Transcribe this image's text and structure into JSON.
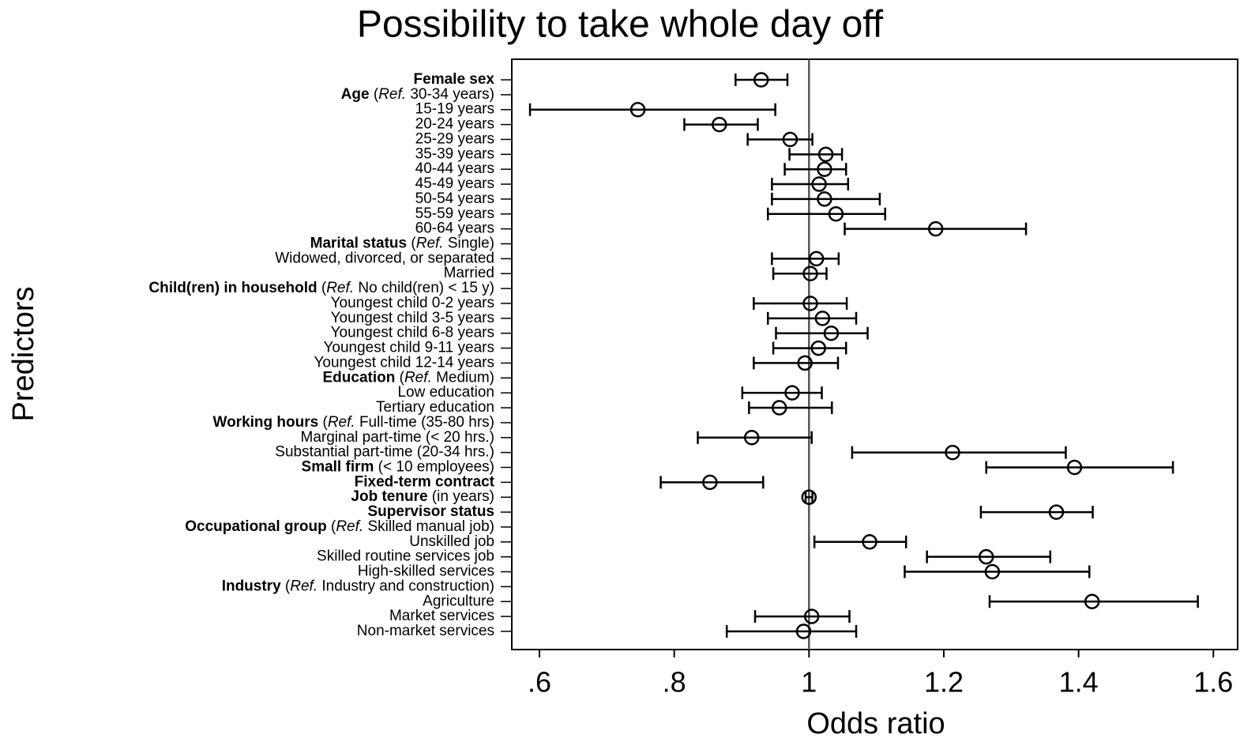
{
  "chart_data": {
    "type": "forest",
    "title": "Possibility to take whole day off",
    "x_label": "Odds ratio",
    "y_label": "Predictors",
    "categories": [
      [
        {
          "text": "Female sex",
          "bold": true
        }
      ],
      [
        {
          "text": "Age",
          "bold": true
        },
        {
          "text": " ("
        },
        {
          "text": "Ref.",
          "italic": true
        },
        {
          "text": " 30-34 years)"
        }
      ],
      [
        {
          "text": "15-19 years"
        }
      ],
      [
        {
          "text": "20-24 years"
        }
      ],
      [
        {
          "text": "25-29 years"
        }
      ],
      [
        {
          "text": "35-39 years"
        }
      ],
      [
        {
          "text": "40-44 years"
        }
      ],
      [
        {
          "text": "45-49 years"
        }
      ],
      [
        {
          "text": "50-54 years"
        }
      ],
      [
        {
          "text": "55-59 years"
        }
      ],
      [
        {
          "text": "60-64 years"
        }
      ],
      [
        {
          "text": "Marital status",
          "bold": true
        },
        {
          "text": " ("
        },
        {
          "text": "Ref.",
          "italic": true
        },
        {
          "text": " Single)"
        }
      ],
      [
        {
          "text": "Widowed, divorced, or separated"
        }
      ],
      [
        {
          "text": "Married"
        }
      ],
      [
        {
          "text": "Child(ren) in household",
          "bold": true
        },
        {
          "text": " ("
        },
        {
          "text": "Ref.",
          "italic": true
        },
        {
          "text": " No child(ren) < 15 y)"
        }
      ],
      [
        {
          "text": "Youngest child 0-2 years"
        }
      ],
      [
        {
          "text": "Youngest child 3-5 years"
        }
      ],
      [
        {
          "text": "Youngest child 6-8 years"
        }
      ],
      [
        {
          "text": "Youngest child 9-11 years"
        }
      ],
      [
        {
          "text": "Youngest child 12-14 years"
        }
      ],
      [
        {
          "text": "Education",
          "bold": true
        },
        {
          "text": " ("
        },
        {
          "text": "Ref.",
          "italic": true
        },
        {
          "text": " Medium)"
        }
      ],
      [
        {
          "text": "Low education"
        }
      ],
      [
        {
          "text": "Tertiary education"
        }
      ],
      [
        {
          "text": "Working hours",
          "bold": true
        },
        {
          "text": " ("
        },
        {
          "text": "Ref.",
          "italic": true
        },
        {
          "text": " Full-time (35-80 hrs)"
        }
      ],
      [
        {
          "text": "Marginal part-time (< 20 hrs.)"
        }
      ],
      [
        {
          "text": "Substantial part-time (20-34 hrs.)"
        }
      ],
      [
        {
          "text": "Small firm",
          "bold": true
        },
        {
          "text": " (< 10 employees)"
        }
      ],
      [
        {
          "text": "Fixed-term contract",
          "bold": true
        }
      ],
      [
        {
          "text": "Job tenure",
          "bold": true
        },
        {
          "text": " (in years)"
        }
      ],
      [
        {
          "text": "Supervisor status",
          "bold": true
        }
      ],
      [
        {
          "text": "Occupational group",
          "bold": true
        },
        {
          "text": " ("
        },
        {
          "text": "Ref.",
          "italic": true
        },
        {
          "text": " Skilled manual job)"
        }
      ],
      [
        {
          "text": "Unskilled job"
        }
      ],
      [
        {
          "text": "Skilled routine services job"
        }
      ],
      [
        {
          "text": "High-skilled services"
        }
      ],
      [
        {
          "text": "Industry",
          "bold": true
        },
        {
          "text": " ("
        },
        {
          "text": "Ref.",
          "italic": true
        },
        {
          "text": " Industry and construction)"
        }
      ],
      [
        {
          "text": "Agriculture"
        }
      ],
      [
        {
          "text": "Market services"
        }
      ],
      [
        {
          "text": "Non-market services"
        }
      ]
    ],
    "values": [
      0.929,
      null,
      0.746,
      0.867,
      0.972,
      1.025,
      1.023,
      1.015,
      1.023,
      1.04,
      1.188,
      null,
      1.011,
      1.002,
      null,
      1.002,
      1.02,
      1.033,
      1.014,
      0.994,
      null,
      0.975,
      0.956,
      null,
      0.915,
      1.213,
      1.394,
      0.853,
      1.0,
      1.367,
      null,
      1.09,
      1.263,
      1.272,
      null,
      1.42,
      1.004,
      0.992
    ],
    "lower": [
      0.891,
      null,
      0.586,
      0.815,
      0.909,
      0.971,
      0.964,
      0.945,
      0.945,
      0.939,
      1.053,
      null,
      0.945,
      0.947,
      null,
      0.918,
      0.939,
      0.951,
      0.947,
      0.918,
      null,
      0.901,
      0.911,
      null,
      0.835,
      1.064,
      1.263,
      0.78,
      0.995,
      1.255,
      null,
      1.008,
      1.175,
      1.142,
      null,
      1.268,
      0.92,
      0.878
    ],
    "upper": [
      0.968,
      null,
      0.95,
      0.924,
      1.005,
      1.049,
      1.055,
      1.058,
      1.105,
      1.113,
      1.322,
      null,
      1.044,
      1.026,
      null,
      1.056,
      1.07,
      1.087,
      1.055,
      1.043,
      null,
      1.019,
      1.034,
      null,
      1.004,
      1.381,
      1.54,
      0.932,
      1.005,
      1.421,
      null,
      1.144,
      1.358,
      1.416,
      null,
      1.577,
      1.06,
      1.07
    ],
    "color": "#000000",
    "refline": 1,
    "xlim": [
      0.559,
      1.636
    ],
    "xticks": [
      {
        "value": 0.6,
        "label": ".6"
      },
      {
        "value": 0.8,
        "label": ".8"
      },
      1,
      1.2,
      1.4,
      1.6
    ]
  }
}
